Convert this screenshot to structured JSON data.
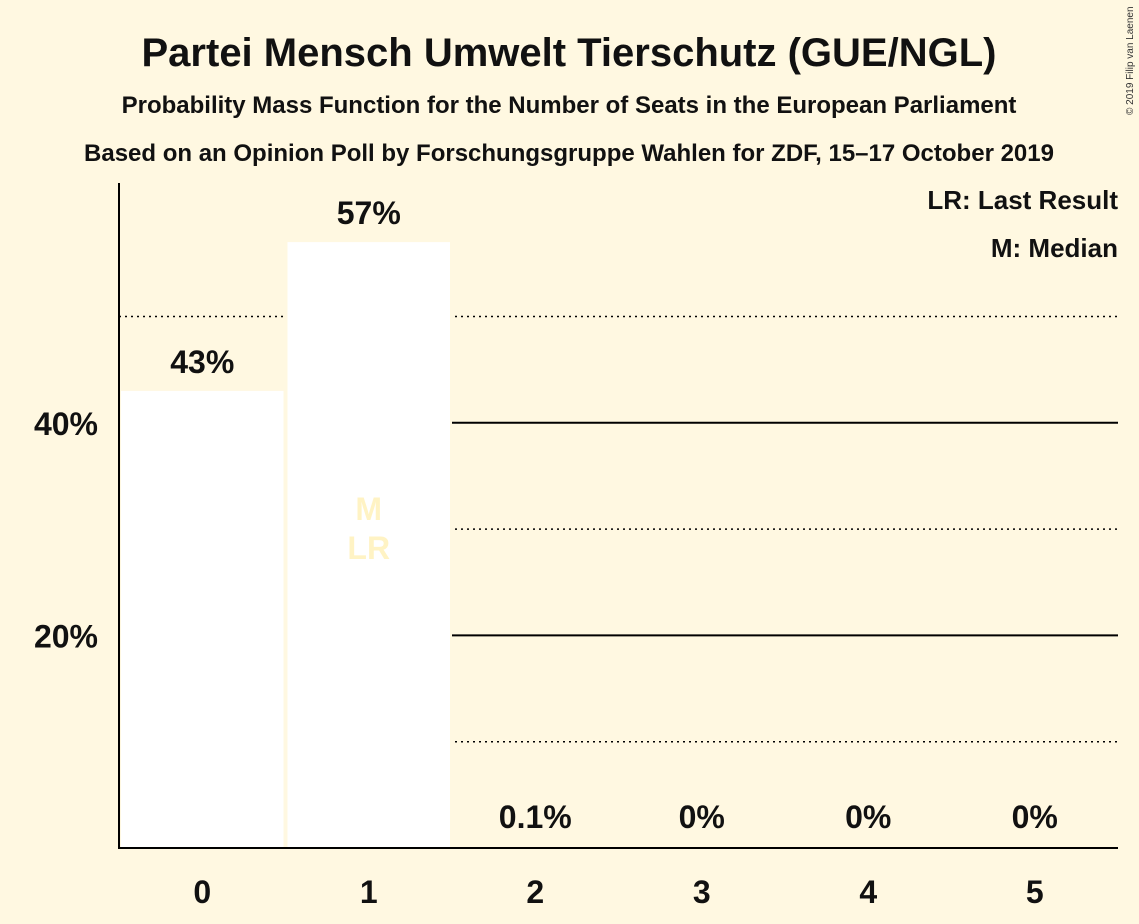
{
  "title": "Partei Mensch Umwelt Tierschutz (GUE/NGL)",
  "subtitle": "Probability Mass Function for the Number of Seats in the European Parliament",
  "subtitle2": "Based on an Opinion Poll by Forschungsgruppe Wahlen for ZDF, 15–17 October 2019",
  "copyright": "© 2019 Filip van Laenen",
  "legend": {
    "lr": "LR: Last Result",
    "m": "M: Median"
  },
  "colors": {
    "background": "#fff8e1",
    "bar": "#ffffff",
    "marker": "#fff3c4",
    "axis": "#000000"
  },
  "chart_data": {
    "type": "bar",
    "categories": [
      "0",
      "1",
      "2",
      "3",
      "4",
      "5"
    ],
    "values": [
      43,
      57,
      0.1,
      0,
      0,
      0
    ],
    "labels": [
      "43%",
      "57%",
      "0.1%",
      "0%",
      "0%",
      "0%"
    ],
    "ylim": [
      0,
      62
    ],
    "yticks": [
      {
        "value": 20,
        "label": "20%"
      },
      {
        "value": 40,
        "label": "40%"
      }
    ],
    "gridlines_solid": [
      20,
      40
    ],
    "gridlines_dotted": [
      10,
      30,
      50
    ],
    "median_category": "1",
    "last_result_category": "1",
    "median_label": "M",
    "last_result_label": "LR"
  }
}
